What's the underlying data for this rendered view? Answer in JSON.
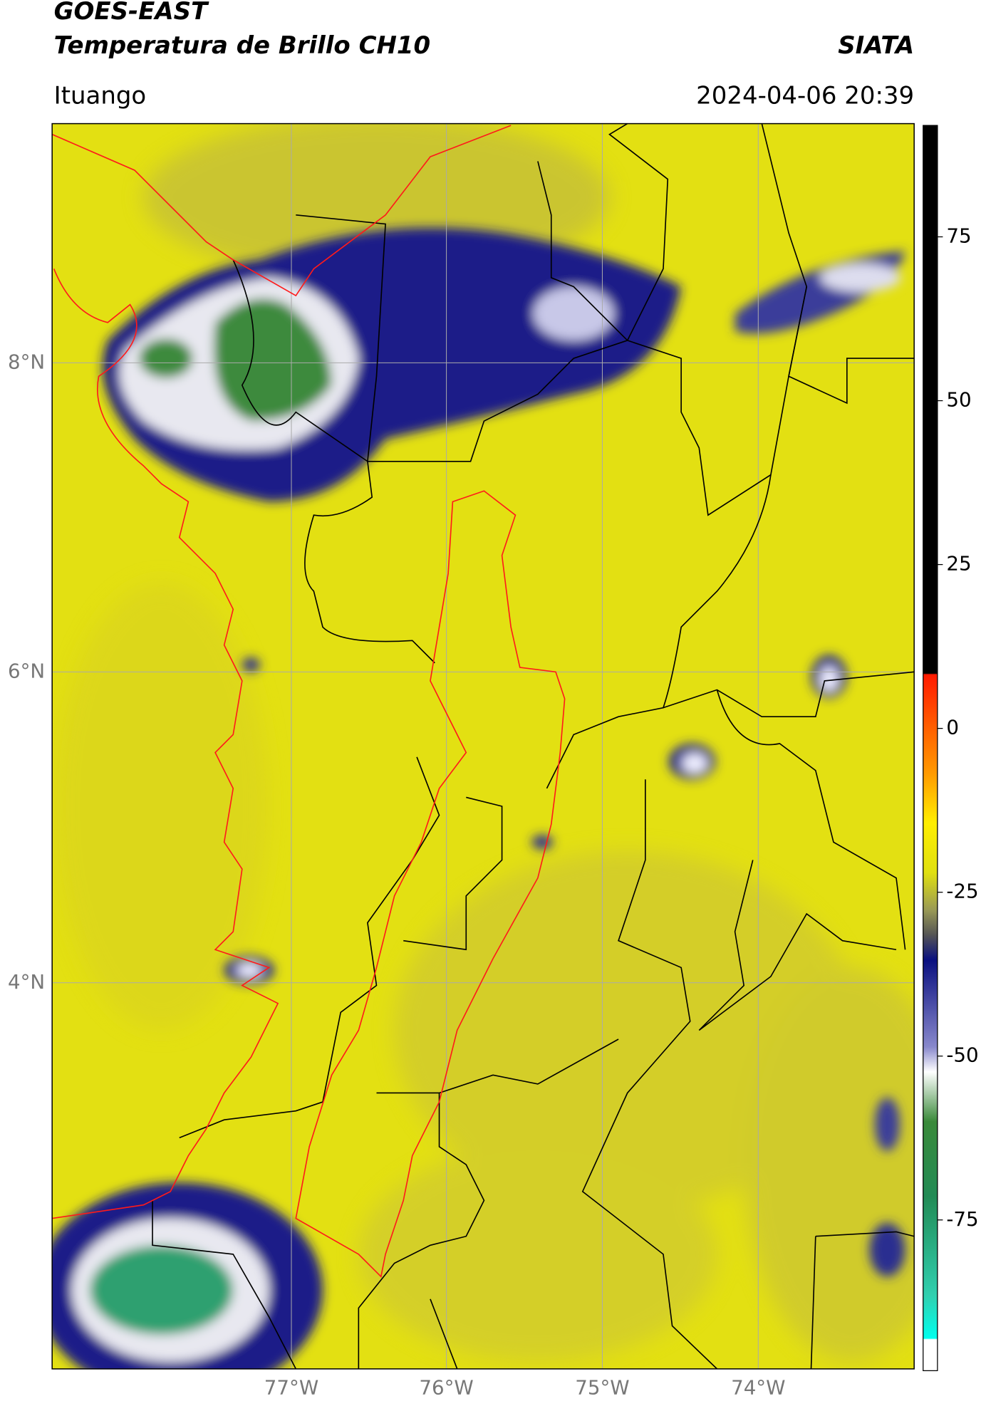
{
  "header": {
    "title": "GOES-EAST",
    "subtitle": "Temperatura de Brillo CH10",
    "brand": "SIATA",
    "location": "Ituango",
    "datetime": "2024-04-06 20:39"
  },
  "map": {
    "lat_labels": [
      "8°N",
      "6°N",
      "4°N"
    ],
    "lon_labels": [
      "77°W",
      "76°W",
      "75°W",
      "74°W"
    ]
  },
  "colorbar": {
    "range": [
      -98,
      92
    ],
    "ticks": [
      75,
      50,
      25,
      0,
      -25,
      -50,
      -75
    ]
  }
}
